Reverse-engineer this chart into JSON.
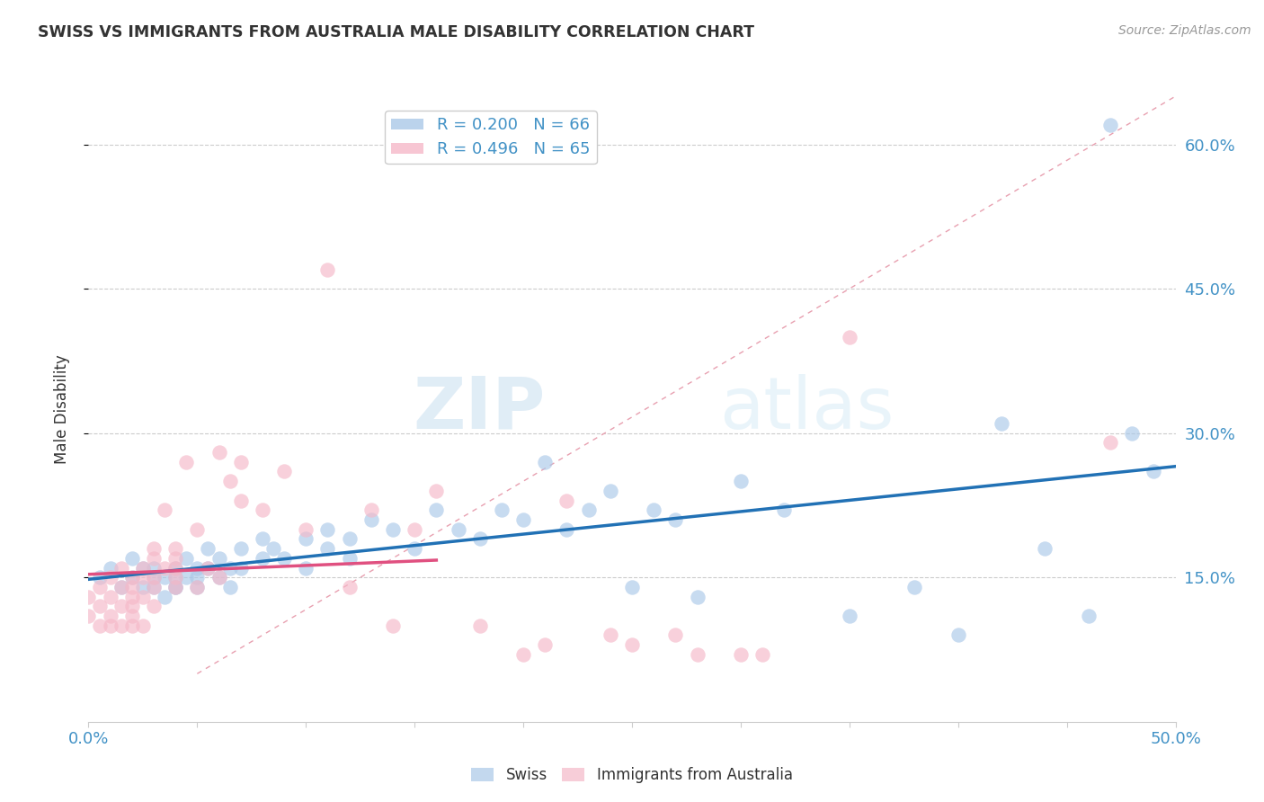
{
  "title": "SWISS VS IMMIGRANTS FROM AUSTRALIA MALE DISABILITY CORRELATION CHART",
  "source": "Source: ZipAtlas.com",
  "ylabel": "Male Disability",
  "xlim": [
    0.0,
    0.5
  ],
  "ylim": [
    0.0,
    0.65
  ],
  "xticks": [
    0.0,
    0.05,
    0.1,
    0.15,
    0.2,
    0.25,
    0.3,
    0.35,
    0.4,
    0.45,
    0.5
  ],
  "yticks_right": [
    0.15,
    0.3,
    0.45,
    0.6
  ],
  "ytick_labels_right": [
    "15.0%",
    "30.0%",
    "45.0%",
    "60.0%"
  ],
  "grid_color": "#cccccc",
  "background_color": "#ffffff",
  "swiss_color": "#aac8e8",
  "australia_color": "#f5b8c8",
  "swiss_line_color": "#2171b5",
  "australia_line_color": "#e05080",
  "diagonal_color": "#e8a0b0",
  "swiss_R": 0.2,
  "swiss_N": 66,
  "australia_R": 0.496,
  "australia_N": 65,
  "title_color": "#333333",
  "axis_label_color": "#333333",
  "tick_label_color": "#4292c6",
  "legend_text_color": "#4292c6",
  "watermark_zip": "ZIP",
  "watermark_atlas": "atlas",
  "swiss_scatter_x": [
    0.005,
    0.01,
    0.015,
    0.02,
    0.02,
    0.025,
    0.025,
    0.03,
    0.03,
    0.03,
    0.035,
    0.035,
    0.04,
    0.04,
    0.04,
    0.04,
    0.045,
    0.045,
    0.05,
    0.05,
    0.05,
    0.055,
    0.055,
    0.06,
    0.06,
    0.065,
    0.065,
    0.07,
    0.07,
    0.08,
    0.08,
    0.085,
    0.09,
    0.1,
    0.1,
    0.11,
    0.11,
    0.12,
    0.12,
    0.13,
    0.14,
    0.15,
    0.16,
    0.17,
    0.18,
    0.19,
    0.2,
    0.21,
    0.22,
    0.23,
    0.24,
    0.25,
    0.26,
    0.27,
    0.28,
    0.3,
    0.32,
    0.35,
    0.38,
    0.4,
    0.42,
    0.44,
    0.46,
    0.47,
    0.48,
    0.49
  ],
  "swiss_scatter_y": [
    0.15,
    0.16,
    0.14,
    0.15,
    0.17,
    0.14,
    0.16,
    0.15,
    0.14,
    0.16,
    0.15,
    0.13,
    0.14,
    0.15,
    0.16,
    0.14,
    0.17,
    0.15,
    0.16,
    0.14,
    0.15,
    0.16,
    0.18,
    0.17,
    0.15,
    0.16,
    0.14,
    0.18,
    0.16,
    0.17,
    0.19,
    0.18,
    0.17,
    0.19,
    0.16,
    0.2,
    0.18,
    0.17,
    0.19,
    0.21,
    0.2,
    0.18,
    0.22,
    0.2,
    0.19,
    0.22,
    0.21,
    0.27,
    0.2,
    0.22,
    0.24,
    0.14,
    0.22,
    0.21,
    0.13,
    0.25,
    0.22,
    0.11,
    0.14,
    0.09,
    0.31,
    0.18,
    0.11,
    0.62,
    0.3,
    0.26
  ],
  "australia_scatter_x": [
    0.0,
    0.0,
    0.005,
    0.005,
    0.005,
    0.01,
    0.01,
    0.01,
    0.01,
    0.015,
    0.015,
    0.015,
    0.015,
    0.02,
    0.02,
    0.02,
    0.02,
    0.02,
    0.02,
    0.025,
    0.025,
    0.025,
    0.025,
    0.03,
    0.03,
    0.03,
    0.03,
    0.03,
    0.035,
    0.035,
    0.04,
    0.04,
    0.04,
    0.04,
    0.04,
    0.045,
    0.05,
    0.05,
    0.055,
    0.06,
    0.06,
    0.065,
    0.07,
    0.07,
    0.08,
    0.09,
    0.1,
    0.11,
    0.12,
    0.13,
    0.14,
    0.15,
    0.16,
    0.18,
    0.2,
    0.21,
    0.22,
    0.24,
    0.25,
    0.27,
    0.28,
    0.3,
    0.31,
    0.35,
    0.47
  ],
  "australia_scatter_y": [
    0.13,
    0.11,
    0.12,
    0.1,
    0.14,
    0.13,
    0.11,
    0.15,
    0.1,
    0.14,
    0.12,
    0.16,
    0.1,
    0.13,
    0.14,
    0.11,
    0.15,
    0.1,
    0.12,
    0.15,
    0.13,
    0.16,
    0.1,
    0.14,
    0.15,
    0.12,
    0.17,
    0.18,
    0.16,
    0.22,
    0.14,
    0.16,
    0.17,
    0.15,
    0.18,
    0.27,
    0.14,
    0.2,
    0.16,
    0.28,
    0.15,
    0.25,
    0.27,
    0.23,
    0.22,
    0.26,
    0.2,
    0.47,
    0.14,
    0.22,
    0.1,
    0.2,
    0.24,
    0.1,
    0.07,
    0.08,
    0.23,
    0.09,
    0.08,
    0.09,
    0.07,
    0.07,
    0.07,
    0.4,
    0.29
  ]
}
